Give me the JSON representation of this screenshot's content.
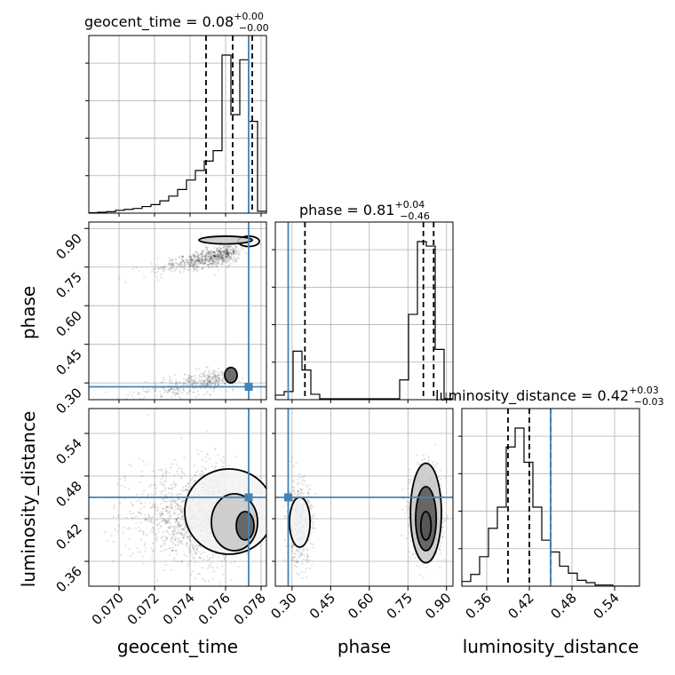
{
  "chart_data": {
    "type": "scatter",
    "subtype": "corner-plot",
    "parameters": [
      "geocent_time",
      "phase",
      "luminosity_distance"
    ],
    "axis_labels": {
      "geocent_time": "geocent_time",
      "phase": "phase",
      "luminosity_distance": "luminosity_distance"
    },
    "titles": [
      {
        "param": "geocent_time",
        "label": "geocent_time",
        "value": "0.08",
        "plus": "+0.00",
        "minus": "−0.00"
      },
      {
        "param": "phase",
        "label": "phase",
        "value": "0.81",
        "plus": "+0.04",
        "minus": "−0.46"
      },
      {
        "param": "luminosity_distance",
        "label": "luminosity_distance",
        "value": "0.42",
        "plus": "+0.03",
        "minus": "−0.03"
      }
    ],
    "ranges": {
      "geocent_time": [
        0.0683,
        0.0783
      ],
      "phase": [
        0.235,
        0.925
      ],
      "luminosity_distance": [
        0.325,
        0.575
      ]
    },
    "ticks": {
      "geocent_time": {
        "values": [
          0.07,
          0.072,
          0.074,
          0.076,
          0.078
        ],
        "labels": [
          "0.070",
          "0.072",
          "0.074",
          "0.076",
          "0.078"
        ]
      },
      "phase": {
        "values": [
          0.3,
          0.45,
          0.6,
          0.75,
          0.9
        ],
        "labels": [
          "0.30",
          "0.45",
          "0.60",
          "0.75",
          "0.90"
        ]
      },
      "luminosity_distance": {
        "values": [
          0.36,
          0.42,
          0.48,
          0.54
        ],
        "labels": [
          "0.36",
          "0.42",
          "0.48",
          "0.54"
        ]
      }
    },
    "truths": {
      "geocent_time": 0.0773,
      "phase": 0.285,
      "luminosity_distance": 0.45
    },
    "quantiles": {
      "geocent_time": [
        0.0749,
        0.0764,
        0.0775
      ],
      "phase": [
        0.35,
        0.81,
        0.85
      ],
      "luminosity_distance": [
        0.39,
        0.42,
        0.45
      ]
    },
    "histograms": {
      "geocent_time": {
        "edges": [
          0.0683,
          0.0688,
          0.0693,
          0.0698,
          0.0703,
          0.0708,
          0.0713,
          0.0718,
          0.0723,
          0.0728,
          0.0733,
          0.0738,
          0.0743,
          0.0748,
          0.0753,
          0.0758,
          0.0763,
          0.0768,
          0.0773,
          0.0778,
          0.0783
        ],
        "counts": [
          0.5,
          1,
          1.5,
          3,
          4,
          5,
          7,
          9,
          13,
          18,
          25,
          35,
          45,
          55,
          66,
          167,
          104,
          162,
          97,
          2
        ]
      },
      "phase": {
        "edges": [
          0.235,
          0.2695,
          0.304,
          0.3385,
          0.373,
          0.4075,
          0.442,
          0.4765,
          0.511,
          0.5455,
          0.58,
          0.6145,
          0.649,
          0.6835,
          0.718,
          0.7525,
          0.787,
          0.8215,
          0.856,
          0.8905,
          0.925
        ],
        "counts": [
          5,
          9,
          54,
          33,
          6,
          1,
          1,
          1,
          1,
          1,
          1,
          1,
          1,
          1,
          22,
          95,
          176,
          171,
          56,
          1
        ]
      },
      "luminosity_distance": {
        "edges": [
          0.325,
          0.3375,
          0.35,
          0.3625,
          0.375,
          0.3875,
          0.4,
          0.4125,
          0.425,
          0.4375,
          0.45,
          0.4625,
          0.475,
          0.4875,
          0.5,
          0.5125,
          0.525,
          0.5375,
          0.55,
          0.5625,
          0.575
        ],
        "counts": [
          4,
          10,
          25,
          49,
          67,
          118,
          134,
          105,
          67,
          39,
          29,
          17,
          11,
          5,
          3,
          1,
          1,
          0,
          0,
          0
        ]
      }
    },
    "grid": true
  }
}
